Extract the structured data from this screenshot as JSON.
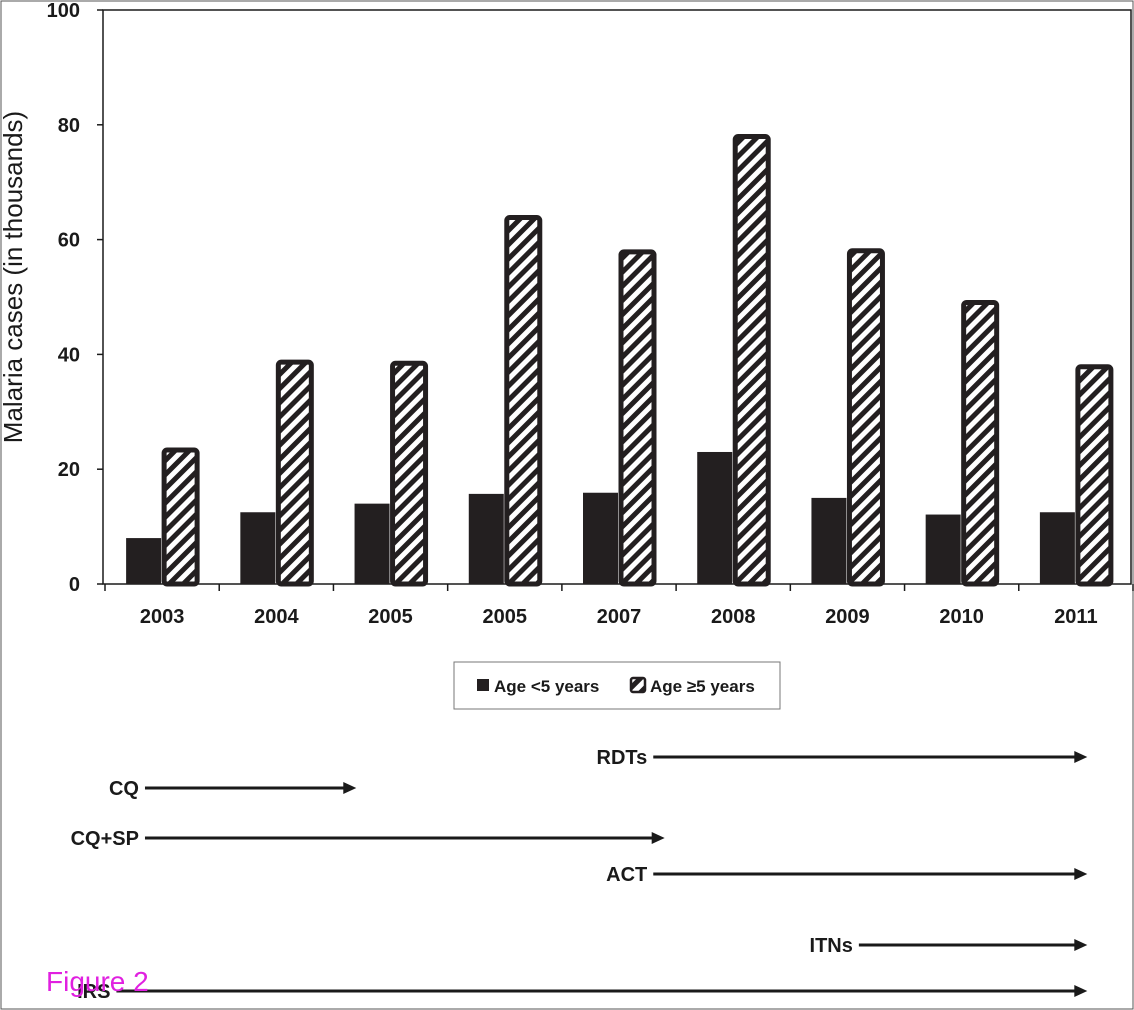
{
  "chart_data": {
    "type": "bar",
    "categories": [
      "2003",
      "2004",
      "2005",
      "2005",
      "2007",
      "2008",
      "2009",
      "2010",
      "2011"
    ],
    "series": [
      {
        "name": "Age <5 years",
        "values": [
          8,
          12.5,
          14,
          15.7,
          15.9,
          23,
          15,
          12.1,
          12.5
        ],
        "style": "solid"
      },
      {
        "name": "Age ≥5 years",
        "values": [
          23.7,
          39,
          38.8,
          64.2,
          58.2,
          78.3,
          58.4,
          49.4,
          38.2
        ],
        "style": "hatched"
      }
    ],
    "ylabel": "Malaria cases (in thousands)",
    "xlabel": "",
    "ylim": [
      0,
      100
    ],
    "yticks": [
      0,
      20,
      40,
      60,
      80,
      100
    ],
    "grid": false,
    "legend_position": "bottom-center"
  },
  "colors": {
    "dark": "#231f20",
    "axis": "#1a1a1a",
    "figure_label": "#e020e0"
  },
  "timeline": [
    {
      "label": "RDTs",
      "start": 2007.3,
      "end": 2011.1
    },
    {
      "label": "CQ",
      "start": 2002.85,
      "end": 2004.7
    },
    {
      "label": "CQ+SP",
      "start": 2002.85,
      "end": 2007.4
    },
    {
      "label": "ACT",
      "start": 2007.3,
      "end": 2011.1
    },
    {
      "label": "ITNs",
      "start": 2009.1,
      "end": 2011.1
    },
    {
      "label": "IRS",
      "start": 2002.6,
      "end": 2011.1
    }
  ],
  "figure_label": "Figure 2"
}
